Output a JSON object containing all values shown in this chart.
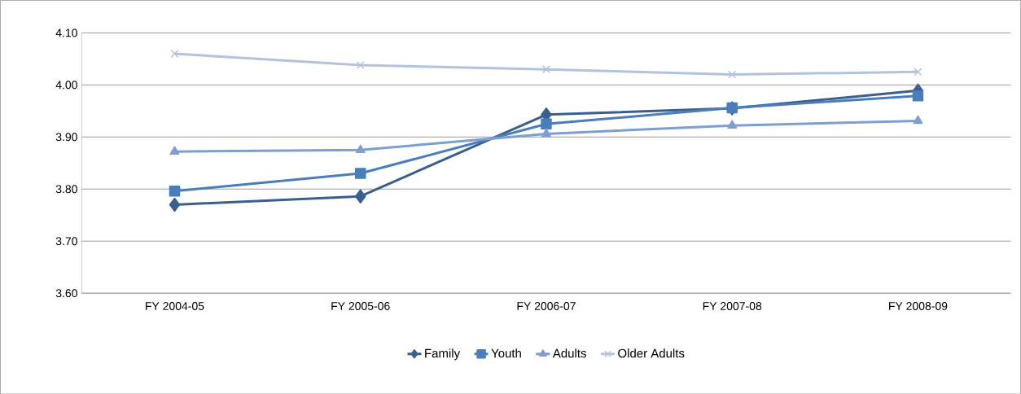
{
  "chart_data": {
    "type": "line",
    "categories": [
      "FY 2004-05",
      "FY 2005-06",
      "FY 2006-07",
      "FY 2007-08",
      "FY 2008-09"
    ],
    "series": [
      {
        "name": "Family",
        "color": "#3a5f8f",
        "marker": "diamond",
        "values": [
          3.77,
          3.786,
          3.943,
          3.955,
          3.989
        ]
      },
      {
        "name": "Youth",
        "color": "#4a7ebb",
        "marker": "square",
        "values": [
          3.796,
          3.83,
          3.925,
          3.956,
          3.979
        ]
      },
      {
        "name": "Adults",
        "color": "#7d9fd0",
        "marker": "triangle",
        "values": [
          3.872,
          3.875,
          3.906,
          3.922,
          3.931
        ]
      },
      {
        "name": "Older Adults",
        "color": "#b3c3de",
        "marker": "cross",
        "values": [
          4.06,
          4.038,
          4.03,
          4.02,
          4.025
        ]
      }
    ],
    "ylim": [
      3.6,
      4.1
    ],
    "yticks": [
      {
        "value": 3.6,
        "label": "3.60"
      },
      {
        "value": 3.7,
        "label": "3.70"
      },
      {
        "value": 3.8,
        "label": "3.80"
      },
      {
        "value": 3.9,
        "label": "3.90"
      },
      {
        "value": 4.0,
        "label": "4.00"
      },
      {
        "value": 4.1,
        "label": "4.10"
      }
    ],
    "grid": "y",
    "legend": "bottom",
    "line_style": "solid"
  }
}
